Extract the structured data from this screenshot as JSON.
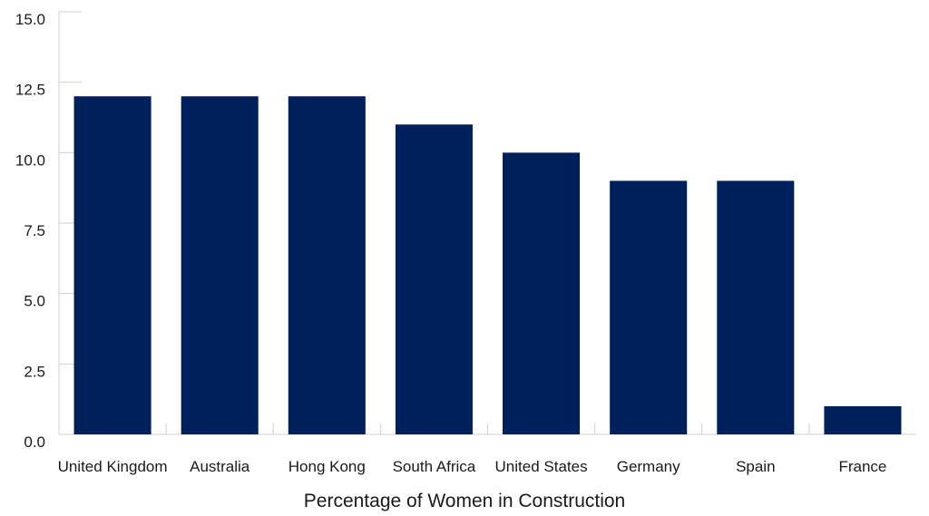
{
  "chart_data": {
    "type": "bar",
    "title": "",
    "xlabel": "Percentage of Women in Construction",
    "ylabel": "",
    "categories": [
      "United Kingdom",
      "Australia",
      "Hong Kong",
      "South Africa",
      "United States",
      "Germany",
      "Spain",
      "France"
    ],
    "values": [
      12,
      12,
      12,
      11,
      10,
      9,
      9,
      1
    ],
    "ylim": [
      0,
      15
    ],
    "yticks": [
      "0.0",
      "2.5",
      "5.0",
      "7.5",
      "10.0",
      "12.5",
      "15.0"
    ],
    "grid": false,
    "bar_color": "#00205b"
  }
}
